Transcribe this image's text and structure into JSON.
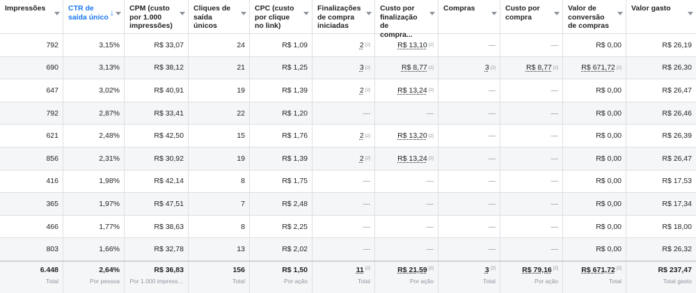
{
  "columns": [
    {
      "key": "impressoes",
      "label": "Impressões",
      "sorted": false
    },
    {
      "key": "ctr",
      "label": "CTR de saída único",
      "sorted": true
    },
    {
      "key": "cpm",
      "label": "CPM (custo por 1.000 impressões)",
      "sorted": false
    },
    {
      "key": "cliques",
      "label": "Cliques de saída únicos",
      "sorted": false
    },
    {
      "key": "cpc",
      "label": "CPC (custo por clique no link)",
      "sorted": false
    },
    {
      "key": "finalizacoes",
      "label": "Finalizações de compra iniciadas",
      "sorted": false
    },
    {
      "key": "custo_finalizacao",
      "label": "Custo por finalização de compra...",
      "sorted": false
    },
    {
      "key": "compras",
      "label": "Compras",
      "sorted": false
    },
    {
      "key": "custo_compra",
      "label": "Custo por compra",
      "sorted": false
    },
    {
      "key": "valor_conversao",
      "label": "Valor de conversão de compras",
      "sorted": false
    },
    {
      "key": "valor_gasto",
      "label": "Valor gasto",
      "sorted": false
    }
  ],
  "sort_arrow": "↓",
  "attribution_marker": "[2]",
  "rows": [
    {
      "impressoes": "792",
      "ctr": "3,15%",
      "cpm": "R$ 33,07",
      "cliques": "24",
      "cpc": "R$ 1,09",
      "finalizacoes": "2",
      "custo_finalizacao": "R$ 13,10",
      "compras": "—",
      "custo_compra": "—",
      "valor_conversao": "R$ 0,00",
      "valor_gasto": "R$ 26,19"
    },
    {
      "impressoes": "690",
      "ctr": "3,13%",
      "cpm": "R$ 38,12",
      "cliques": "21",
      "cpc": "R$ 1,25",
      "finalizacoes": "3",
      "custo_finalizacao": "R$ 8,77",
      "compras": "3",
      "custo_compra": "R$ 8,77",
      "valor_conversao": "R$ 671,72",
      "valor_gasto": "R$ 26,30"
    },
    {
      "impressoes": "647",
      "ctr": "3,02%",
      "cpm": "R$ 40,91",
      "cliques": "19",
      "cpc": "R$ 1,39",
      "finalizacoes": "2",
      "custo_finalizacao": "R$ 13,24",
      "compras": "—",
      "custo_compra": "—",
      "valor_conversao": "R$ 0,00",
      "valor_gasto": "R$ 26,47"
    },
    {
      "impressoes": "792",
      "ctr": "2,87%",
      "cpm": "R$ 33,41",
      "cliques": "22",
      "cpc": "R$ 1,20",
      "finalizacoes": "—",
      "custo_finalizacao": "—",
      "compras": "—",
      "custo_compra": "—",
      "valor_conversao": "R$ 0,00",
      "valor_gasto": "R$ 26,46"
    },
    {
      "impressoes": "621",
      "ctr": "2,48%",
      "cpm": "R$ 42,50",
      "cliques": "15",
      "cpc": "R$ 1,76",
      "finalizacoes": "2",
      "custo_finalizacao": "R$ 13,20",
      "compras": "—",
      "custo_compra": "—",
      "valor_conversao": "R$ 0,00",
      "valor_gasto": "R$ 26,39"
    },
    {
      "impressoes": "856",
      "ctr": "2,31%",
      "cpm": "R$ 30,92",
      "cliques": "19",
      "cpc": "R$ 1,39",
      "finalizacoes": "2",
      "custo_finalizacao": "R$ 13,24",
      "compras": "—",
      "custo_compra": "—",
      "valor_conversao": "R$ 0,00",
      "valor_gasto": "R$ 26,47"
    },
    {
      "impressoes": "416",
      "ctr": "1,98%",
      "cpm": "R$ 42,14",
      "cliques": "8",
      "cpc": "R$ 1,75",
      "finalizacoes": "—",
      "custo_finalizacao": "—",
      "compras": "—",
      "custo_compra": "—",
      "valor_conversao": "R$ 0,00",
      "valor_gasto": "R$ 17,53"
    },
    {
      "impressoes": "365",
      "ctr": "1,97%",
      "cpm": "R$ 47,51",
      "cliques": "7",
      "cpc": "R$ 2,48",
      "finalizacoes": "—",
      "custo_finalizacao": "—",
      "compras": "—",
      "custo_compra": "—",
      "valor_conversao": "R$ 0,00",
      "valor_gasto": "R$ 17,34"
    },
    {
      "impressoes": "466",
      "ctr": "1,77%",
      "cpm": "R$ 38,63",
      "cliques": "8",
      "cpc": "R$ 2,25",
      "finalizacoes": "—",
      "custo_finalizacao": "—",
      "compras": "—",
      "custo_compra": "—",
      "valor_conversao": "R$ 0,00",
      "valor_gasto": "R$ 18,00"
    },
    {
      "impressoes": "803",
      "ctr": "1,66%",
      "cpm": "R$ 32,78",
      "cliques": "13",
      "cpc": "R$ 2,02",
      "finalizacoes": "—",
      "custo_finalizacao": "—",
      "compras": "—",
      "custo_compra": "—",
      "valor_conversao": "R$ 0,00",
      "valor_gasto": "R$ 26,32"
    }
  ],
  "marked_cells": [
    "finalizacoes",
    "custo_finalizacao",
    "compras",
    "custo_compra",
    "valor_conversao"
  ],
  "totals": [
    {
      "key": "impressoes",
      "value": "6.448",
      "label": "Total"
    },
    {
      "key": "ctr",
      "value": "2,64%",
      "label": "Por pessoa"
    },
    {
      "key": "cpm",
      "value": "R$ 36,83",
      "label": "Por 1.000 impress…"
    },
    {
      "key": "cliques",
      "value": "156",
      "label": "Total"
    },
    {
      "key": "cpc",
      "value": "R$ 1,50",
      "label": "Por ação"
    },
    {
      "key": "finalizacoes",
      "value": "11",
      "label": "Total",
      "marked": true
    },
    {
      "key": "custo_finalizacao",
      "value": "R$ 21,59",
      "label": "Por ação",
      "marked": true
    },
    {
      "key": "compras",
      "value": "3",
      "label": "Total",
      "marked": true
    },
    {
      "key": "custo_compra",
      "value": "R$ 79,16",
      "label": "Por ação",
      "marked": true
    },
    {
      "key": "valor_conversao",
      "value": "R$ 671,72",
      "label": "Total",
      "marked": true
    },
    {
      "key": "valor_gasto",
      "value": "R$ 237,47",
      "label": "Total gasto",
      "marked": false
    }
  ]
}
